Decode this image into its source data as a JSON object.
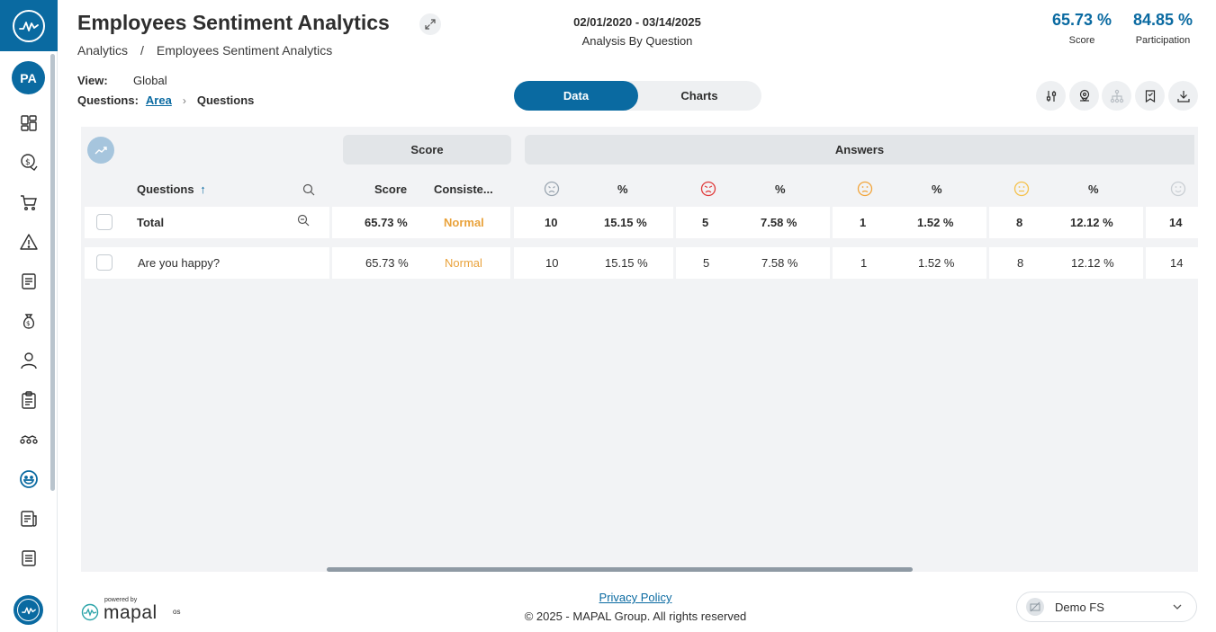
{
  "app": {
    "title": "Employees Sentiment Analytics",
    "breadcrumb": [
      "Analytics",
      "/",
      "Employees Sentiment Analytics"
    ],
    "date_range": "02/01/2020 - 03/14/2025",
    "analysis_by": "Analysis By Question"
  },
  "user": {
    "initials": "PA"
  },
  "kpis": {
    "score": {
      "value": "65.73 %",
      "label": "Score"
    },
    "participation": {
      "value": "84.85 %",
      "label": "Participation"
    }
  },
  "filters": {
    "view_label": "View:",
    "view_value": "Global",
    "questions_label": "Questions:",
    "area_link": "Area",
    "current": "Questions"
  },
  "toggle": {
    "data": "Data",
    "charts": "Charts",
    "active": "Data"
  },
  "toolbar": [
    "sliders-icon",
    "location-icon",
    "hierarchy-icon",
    "bookmark-icon",
    "download-icon"
  ],
  "sidebar": {
    "items": [
      "dashboard-icon",
      "finance-icon",
      "cart-icon",
      "alert-icon",
      "report-icon",
      "money-bag-icon",
      "person-icon",
      "clipboard-icon",
      "stepping-icon",
      "smile-icon",
      "document-icon",
      "checklist-icon"
    ]
  },
  "table": {
    "group_headers": {
      "score": "Score",
      "answers": "Answers"
    },
    "columns": {
      "questions": "Questions",
      "sort_indicator": "↑",
      "score": "Score",
      "consistency": "Consiste...",
      "pct": "%"
    },
    "answer_faces": [
      {
        "name": "very-unhappy-face-icon",
        "color": "#9aa5b0"
      },
      {
        "name": "angry-face-icon",
        "color": "#e03a3a"
      },
      {
        "name": "sad-face-icon",
        "color": "#f2a43a"
      },
      {
        "name": "neutral-face-icon",
        "color": "#f5c14a"
      },
      {
        "name": "happy-face-icon",
        "color": "#c9ced3"
      }
    ],
    "total": {
      "label": "Total",
      "score": "65.73 %",
      "consistency": "Normal",
      "a1": "10",
      "p1": "15.15 %",
      "a2": "5",
      "p2": "7.58 %",
      "a3": "1",
      "p3": "1.52 %",
      "a4": "8",
      "p4": "12.12 %",
      "a5": "14"
    },
    "rows": [
      {
        "question": "Are you happy?",
        "score": "65.73 %",
        "consistency": "Normal",
        "a1": "10",
        "p1": "15.15 %",
        "a2": "5",
        "p2": "7.58 %",
        "a3": "1",
        "p3": "1.52 %",
        "a4": "8",
        "p4": "12.12 %",
        "a5": "14"
      }
    ]
  },
  "footer": {
    "powered_by": "powered by",
    "brand": "mapal",
    "brand_suffix": "os",
    "privacy": "Privacy Policy",
    "copyright": "© 2025 - MAPAL Group. All rights reserved",
    "org": "Demo FS"
  },
  "colors": {
    "primary": "#0a6aa1",
    "consistency_normal": "#e9a23b"
  }
}
